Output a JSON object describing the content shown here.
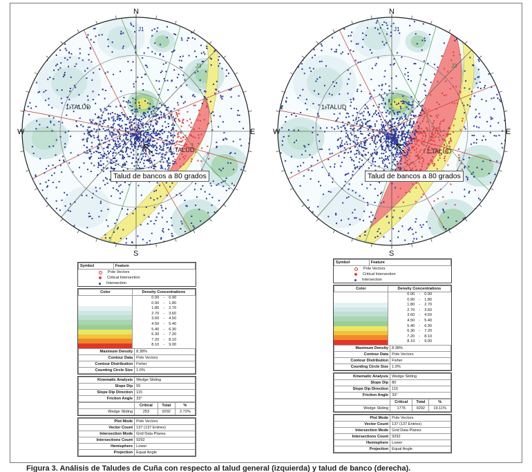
{
  "directions": {
    "n": "N",
    "s": "S",
    "e": "E",
    "w": "W"
  },
  "set_labels": {
    "j1": "J1",
    "j3": "J3"
  },
  "colors": {
    "intersection": "#2a3a9a",
    "critical": "#e04040",
    "plane": "#c0392b",
    "yellow_zone": "#f2ee8c",
    "red_zone": "#f28a8a"
  },
  "panels": [
    {
      "talud_label": "1:TALUD",
      "callout": "Talud de bancos a 80 grados",
      "legend": {
        "symbol_header": "Symbol",
        "feature_header": "Feature",
        "symbols": [
          "Pole Vectors",
          "Critical Intersection",
          "Intersection"
        ],
        "color_header": "Color",
        "density_header": "Density Concentrations",
        "density": [
          [
            "0.00",
            "0.90"
          ],
          [
            "0.90",
            "1.80"
          ],
          [
            "1.80",
            "2.70"
          ],
          [
            "2.70",
            "3.60"
          ],
          [
            "3.60",
            "4.50"
          ],
          [
            "4.50",
            "5.40"
          ],
          [
            "5.40",
            "6.30"
          ],
          [
            "6.30",
            "7.20"
          ],
          [
            "7.20",
            "8.10"
          ],
          [
            "8.10",
            "9.00"
          ]
        ],
        "density_dash": "-",
        "ramp": [
          "#ffffff",
          "#e4f1f4",
          "#cfe7e6",
          "#bfe0cf",
          "#a9d5b2",
          "#9ccd93",
          "#e9e766",
          "#f3c23a",
          "#ee8a2c",
          "#e4352a"
        ],
        "props1": [
          [
            "Maximum Density",
            "8.38%"
          ],
          [
            "Contour Data",
            "Pole Vectors"
          ],
          [
            "Contour Distribution",
            "Fisher"
          ],
          [
            "Counting Circle Size",
            "1.0%"
          ]
        ],
        "props2": [
          [
            "Kinematic Analysis",
            "Wedge Sliding"
          ],
          [
            "Slope Dip",
            "55"
          ],
          [
            "Slope Dip Direction",
            "115"
          ],
          [
            "Friction Angle",
            "33°"
          ]
        ],
        "crit_head": [
          "Critical",
          "Total",
          "%"
        ],
        "crit_row": [
          "Wedge Sliding",
          "253",
          "9292",
          "2.72%"
        ],
        "props3": [
          [
            "Plot Mode",
            "Pole Vectors"
          ],
          [
            "Vector Count",
            "137 (137 Entries)"
          ],
          [
            "Intersection Mode",
            "Grid Data Planes"
          ],
          [
            "Intersections Count",
            "9292"
          ],
          [
            "Hemisphere",
            "Lower"
          ],
          [
            "Projection",
            "Equal Angle"
          ]
        ]
      }
    },
    {
      "talud_label": "1:TALUD",
      "callout": "Talud de bancos a 80 grados",
      "legend": {
        "symbol_header": "Symbol",
        "feature_header": "Feature",
        "symbols": [
          "Pole Vectors",
          "Critical Intersection",
          "Intersection"
        ],
        "color_header": "Color",
        "density_header": "Density Concentrations",
        "density": [
          [
            "0.00",
            "0.90"
          ],
          [
            "0.90",
            "1.80"
          ],
          [
            "1.80",
            "2.70"
          ],
          [
            "2.70",
            "3.60"
          ],
          [
            "3.60",
            "4.50"
          ],
          [
            "4.50",
            "5.40"
          ],
          [
            "5.40",
            "6.30"
          ],
          [
            "6.30",
            "7.20"
          ],
          [
            "7.20",
            "8.10"
          ],
          [
            "8.10",
            "9.00"
          ]
        ],
        "density_dash": "-",
        "ramp": [
          "#ffffff",
          "#e4f1f4",
          "#cfe7e6",
          "#bfe0cf",
          "#a9d5b2",
          "#9ccd93",
          "#e9e766",
          "#f3c23a",
          "#ee8a2c",
          "#e4352a"
        ],
        "props1": [
          [
            "Maximum Density",
            "8.38%"
          ],
          [
            "Contour Data",
            "Pole Vectors"
          ],
          [
            "Contour Distribution",
            "Fisher"
          ],
          [
            "Counting Circle Size",
            "1.0%"
          ]
        ],
        "props2": [
          [
            "Kinematic Analysis",
            "Wedge Sliding"
          ],
          [
            "Slope Dip",
            "80"
          ],
          [
            "Slope Dip Direction",
            "115"
          ],
          [
            "Friction Angle",
            "33°"
          ]
        ],
        "crit_head": [
          "Critical",
          "Total",
          "%"
        ],
        "crit_row": [
          "Wedge Sliding",
          "1776",
          "9292",
          "19.11%"
        ],
        "props3": [
          [
            "Plot Mode",
            "Pole Vectors"
          ],
          [
            "Vector Count",
            "137 (137 Entries)"
          ],
          [
            "Intersection Mode",
            "Grid Data Planes"
          ],
          [
            "Intersections Count",
            "9292"
          ],
          [
            "Hemisphere",
            "Lower"
          ],
          [
            "Projection",
            "Equal Angle"
          ]
        ]
      }
    }
  ],
  "caption": "Figura 3. Análisis de Taludes de Cuña con respecto al talud general (izquierda) y talud de banco (derecha)."
}
